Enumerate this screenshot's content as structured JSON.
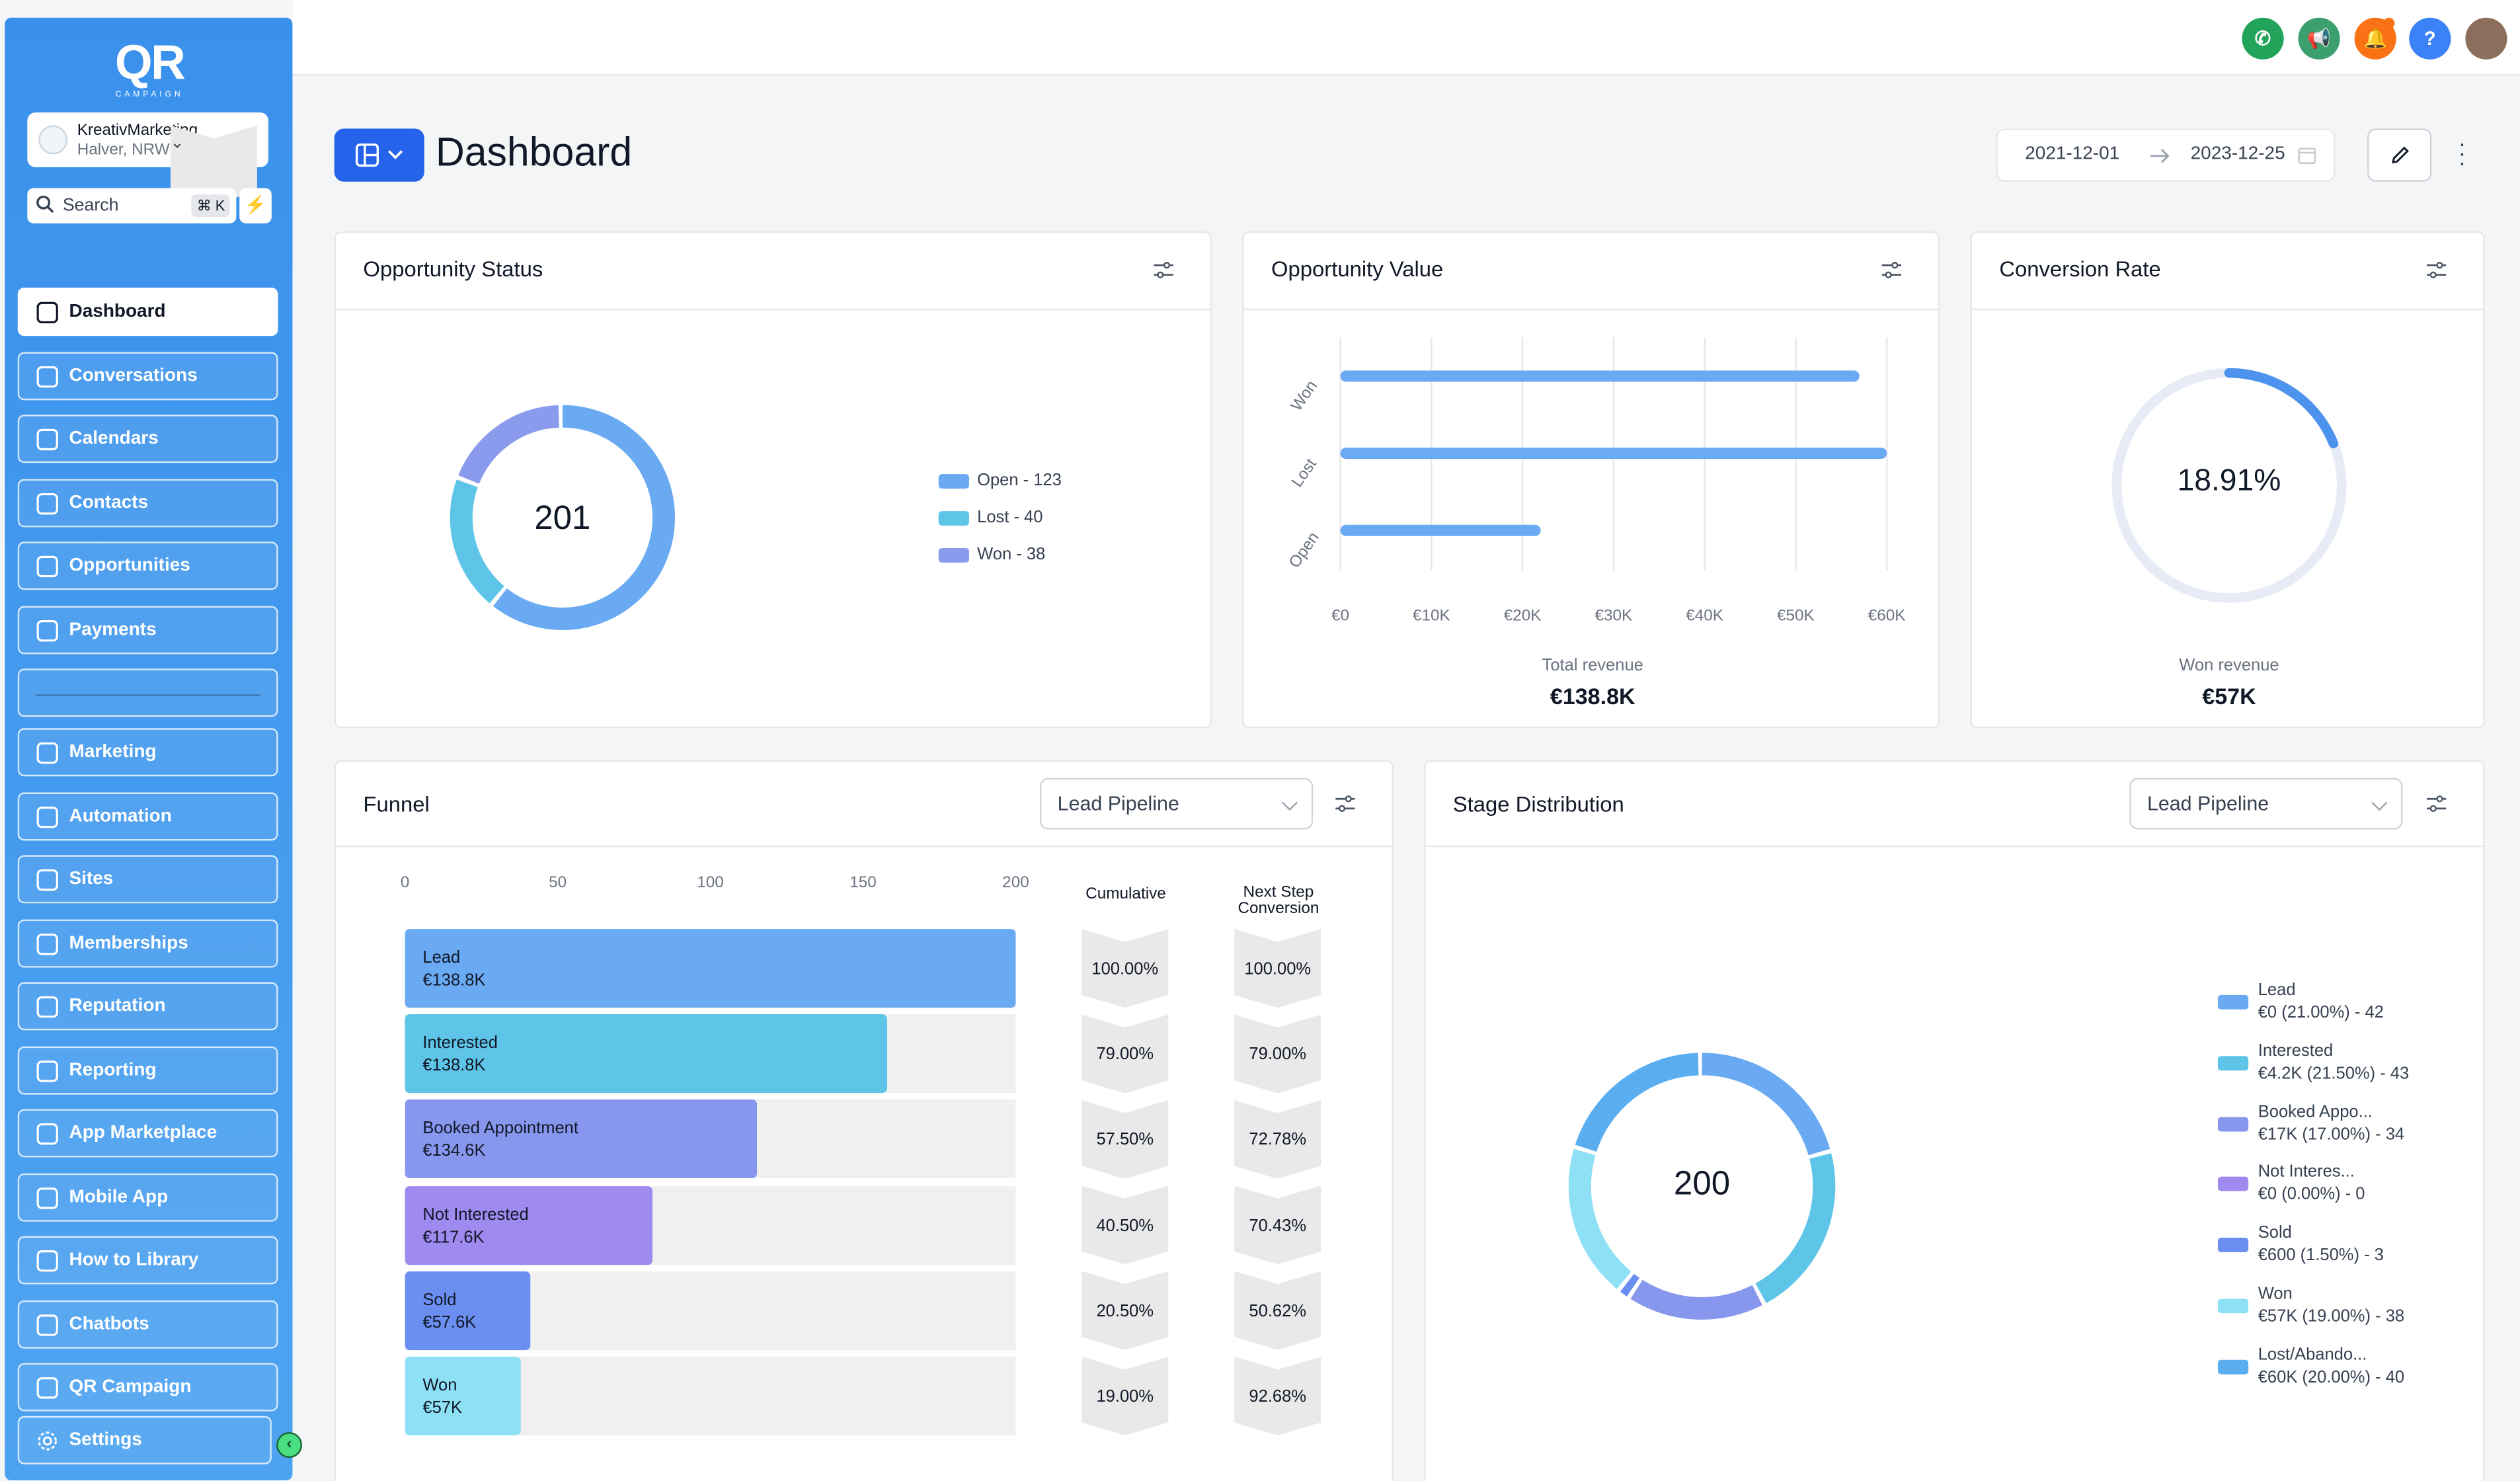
{
  "sidebar": {
    "logo": {
      "text": "QR",
      "sub": "CAMPAIGN"
    },
    "account": {
      "name": "KreativMarketing",
      "location": "Halver, NRW"
    },
    "search": {
      "label": "Search",
      "shortcut": "⌘ K"
    },
    "items": [
      {
        "label": "Dashboard",
        "icon": "grid-icon",
        "active": true
      },
      {
        "label": "Conversations",
        "icon": "chat-icon"
      },
      {
        "label": "Calendars",
        "icon": "calendar-icon"
      },
      {
        "label": "Contacts",
        "icon": "contacts-icon"
      },
      {
        "label": "Opportunities",
        "icon": "opportunities-icon"
      },
      {
        "label": "Payments",
        "icon": "payments-icon"
      },
      {
        "label": "",
        "icon": ""
      },
      {
        "label": "Marketing",
        "icon": "send-icon"
      },
      {
        "label": "Automation",
        "icon": "automation-icon"
      },
      {
        "label": "Sites",
        "icon": "sites-icon"
      },
      {
        "label": "Memberships",
        "icon": "badge-icon"
      },
      {
        "label": "Reputation",
        "icon": "star-icon"
      },
      {
        "label": "Reporting",
        "icon": "trend-icon"
      },
      {
        "label": "App Marketplace",
        "icon": "apps-icon"
      },
      {
        "label": "Mobile App",
        "icon": "phone-icon"
      },
      {
        "label": "How to Library",
        "icon": "info-icon"
      },
      {
        "label": "Chatbots",
        "icon": "robot-icon"
      },
      {
        "label": "QR Campaign",
        "icon": "qr-icon"
      }
    ],
    "settings": "Settings"
  },
  "topbar": {
    "buttons": [
      {
        "name": "phone",
        "color": "#22a35a",
        "glyph": "✆"
      },
      {
        "name": "megaphone",
        "color": "#3b9f6e",
        "glyph": "📢"
      },
      {
        "name": "bell",
        "color": "#f97316",
        "glyph": "🔔"
      },
      {
        "name": "help",
        "color": "#3b82f6",
        "glyph": "?"
      }
    ]
  },
  "header": {
    "title": "Dashboard",
    "date_from": "2021-12-01",
    "date_to": "2023-12-25"
  },
  "opportunity_status": {
    "title": "Opportunity Status",
    "total": "201",
    "legend": [
      "Open - 123",
      "Lost - 40",
      "Won - 38"
    ],
    "colors": [
      "#6aaaf3",
      "#5ec5e8",
      "#8a9bee"
    ],
    "chart_data": {
      "type": "pie",
      "categories": [
        "Open",
        "Lost",
        "Won"
      ],
      "values": [
        123,
        40,
        38
      ]
    }
  },
  "opportunity_value": {
    "title": "Opportunity Value",
    "footer_label": "Total revenue",
    "footer_value": "€138.8K",
    "chart_data": {
      "type": "bar",
      "orientation": "horizontal",
      "categories": [
        "Won",
        "Lost",
        "Open"
      ],
      "values": [
        57000,
        60000,
        22000
      ],
      "xlim": [
        0,
        60000
      ],
      "xticks": [
        "€0",
        "€10K",
        "€20K",
        "€30K",
        "€40K",
        "€50K",
        "€60K"
      ]
    }
  },
  "conversion_rate": {
    "title": "Conversion Rate",
    "value": "18.91%",
    "fraction": 0.1891,
    "footer_label": "Won revenue",
    "footer_value": "€57K"
  },
  "funnel": {
    "title": "Funnel",
    "pipeline": "Lead Pipeline",
    "axis": [
      "0",
      "50",
      "100",
      "150",
      "200"
    ],
    "col_cumulative": "Cumulative",
    "col_next_1": "Next Step",
    "col_next_2": "Conversion",
    "stages": [
      {
        "name": "Lead",
        "value": "€138.8K",
        "count": 200,
        "cumulative": "100.00%",
        "next": "100.00%",
        "color": "#6aaaf3"
      },
      {
        "name": "Interested",
        "value": "€138.8K",
        "count": 158,
        "cumulative": "79.00%",
        "next": "79.00%",
        "color": "#5ec5e8"
      },
      {
        "name": "Booked Appointment",
        "value": "€134.6K",
        "count": 115,
        "cumulative": "57.50%",
        "next": "72.78%",
        "color": "#8797ee"
      },
      {
        "name": "Not Interested",
        "value": "€117.6K",
        "count": 81,
        "cumulative": "40.50%",
        "next": "70.43%",
        "color": "#9f8bf0"
      },
      {
        "name": "Sold",
        "value": "€57.6K",
        "count": 41,
        "cumulative": "20.50%",
        "next": "50.62%",
        "color": "#6b8ff0"
      },
      {
        "name": "Won",
        "value": "€57K",
        "count": 38,
        "cumulative": "19.00%",
        "next": "92.68%",
        "color": "#8ee0f5"
      }
    ],
    "chart_data": {
      "type": "bar",
      "orientation": "horizontal",
      "categories": [
        "Lead",
        "Interested",
        "Booked Appointment",
        "Not Interested",
        "Sold",
        "Won"
      ],
      "values": [
        200,
        158,
        115,
        81,
        41,
        38
      ],
      "xlim": [
        0,
        200
      ]
    }
  },
  "stage_distribution": {
    "title": "Stage Distribution",
    "pipeline": "Lead Pipeline",
    "total": "200",
    "legend": [
      {
        "name": "Lead",
        "detail": "€0 (21.00%) - 42",
        "color": "#6aaaf3"
      },
      {
        "name": "Interested",
        "detail": "€4.2K (21.50%) - 43",
        "color": "#5ec5e8"
      },
      {
        "name": "Booked Appo...",
        "detail": "€17K (17.00%) - 34",
        "color": "#8797ee"
      },
      {
        "name": "Not Interes...",
        "detail": "€0 (0.00%) - 0",
        "color": "#9f8bf0"
      },
      {
        "name": "Sold",
        "detail": "€600 (1.50%) - 3",
        "color": "#6b8ff0"
      },
      {
        "name": "Won",
        "detail": "€57K (19.00%) - 38",
        "color": "#8ee0f5"
      },
      {
        "name": "Lost/Abando...",
        "detail": "€60K (20.00%) - 40",
        "color": "#5aaef0"
      }
    ],
    "chart_data": {
      "type": "pie",
      "categories": [
        "Lead",
        "Interested",
        "Booked Appointment",
        "Not Interested",
        "Sold",
        "Won",
        "Lost/Abandoned"
      ],
      "values": [
        42,
        43,
        34,
        0,
        3,
        38,
        40
      ]
    }
  }
}
